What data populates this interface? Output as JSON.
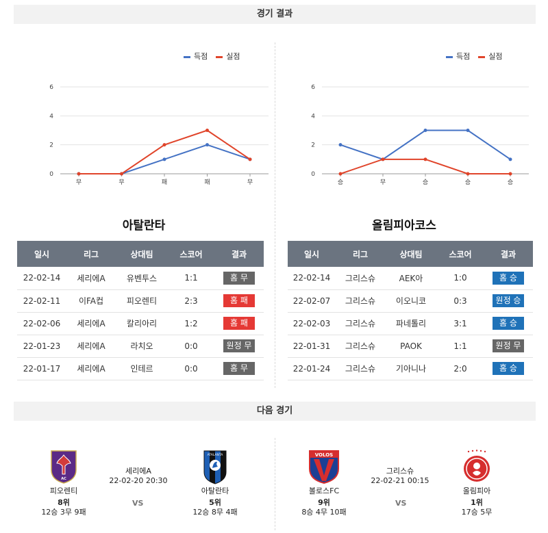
{
  "section_results": "경기 결과",
  "section_next": "다음 경기",
  "legend": {
    "scored": "득점",
    "conceded": "실점"
  },
  "colors": {
    "scored": "#4472c4",
    "conceded": "#e0442a",
    "draw": "#666666",
    "loss": "#e53935",
    "win": "#1f72b8",
    "header": "#6b7480"
  },
  "left": {
    "team": "아탈란타",
    "chart_data": {
      "type": "line",
      "categories": [
        "무",
        "무",
        "패",
        "패",
        "무"
      ],
      "ylim": [
        0,
        6
      ],
      "yticks": [
        0,
        2,
        4,
        6
      ],
      "series": [
        {
          "name": "득점",
          "values": [
            0,
            0,
            1,
            2,
            1
          ]
        },
        {
          "name": "실점",
          "values": [
            0,
            0,
            2,
            3,
            1
          ]
        }
      ]
    },
    "headers": [
      "일시",
      "리그",
      "상대팀",
      "스코어",
      "결과"
    ],
    "rows": [
      {
        "date": "22-02-14",
        "league": "세리에A",
        "opponent": "유벤투스",
        "score": "1:1",
        "result": "홈 무",
        "kind": "draw"
      },
      {
        "date": "22-02-11",
        "league": "이FA컵",
        "opponent": "피오렌티",
        "score": "2:3",
        "result": "홈 패",
        "kind": "loss"
      },
      {
        "date": "22-02-06",
        "league": "세리에A",
        "opponent": "칼리아리",
        "score": "1:2",
        "result": "홈 패",
        "kind": "loss"
      },
      {
        "date": "22-01-23",
        "league": "세리에A",
        "opponent": "라치오",
        "score": "0:0",
        "result": "원정 무",
        "kind": "draw"
      },
      {
        "date": "22-01-17",
        "league": "세리에A",
        "opponent": "인테르",
        "score": "0:0",
        "result": "홈 무",
        "kind": "draw"
      }
    ]
  },
  "right": {
    "team": "올림피아코스",
    "chart_data": {
      "type": "line",
      "categories": [
        "승",
        "무",
        "승",
        "승",
        "승"
      ],
      "ylim": [
        0,
        6
      ],
      "yticks": [
        0,
        2,
        4,
        6
      ],
      "series": [
        {
          "name": "득점",
          "values": [
            2,
            1,
            3,
            3,
            1
          ]
        },
        {
          "name": "실점",
          "values": [
            0,
            1,
            1,
            0,
            0
          ]
        }
      ]
    },
    "headers": [
      "일시",
      "리그",
      "상대팀",
      "스코어",
      "결과"
    ],
    "rows": [
      {
        "date": "22-02-14",
        "league": "그리스슈",
        "opponent": "AEK아",
        "score": "1:0",
        "result": "홈 승",
        "kind": "win"
      },
      {
        "date": "22-02-07",
        "league": "그리스슈",
        "opponent": "이오니코",
        "score": "0:3",
        "result": "원정 승",
        "kind": "win"
      },
      {
        "date": "22-02-03",
        "league": "그리스슈",
        "opponent": "파네톨리",
        "score": "3:1",
        "result": "홈 승",
        "kind": "win"
      },
      {
        "date": "22-01-31",
        "league": "그리스슈",
        "opponent": "PAOK",
        "score": "1:1",
        "result": "원정 무",
        "kind": "draw"
      },
      {
        "date": "22-01-24",
        "league": "그리스슈",
        "opponent": "기아니나",
        "score": "2:0",
        "result": "홈 승",
        "kind": "win"
      }
    ]
  },
  "next_left": {
    "home": {
      "name": "피오렌티",
      "rank": "8위",
      "record": "12승 3무 9패"
    },
    "league": "세리에A",
    "datetime": "22-02-20 20:30",
    "vs": "VS",
    "away": {
      "name": "아탈란타",
      "rank": "5위",
      "record": "12승 8무 4패"
    }
  },
  "next_right": {
    "home": {
      "name": "볼로스FC",
      "rank": "9위",
      "record": "8승 4무 10패",
      "logo_text": "VOLOS"
    },
    "league": "그리스슈",
    "datetime": "22-02-21 00:15",
    "vs": "VS",
    "away": {
      "name": "올림피아",
      "rank": "1위",
      "record": "17승 5무"
    }
  }
}
